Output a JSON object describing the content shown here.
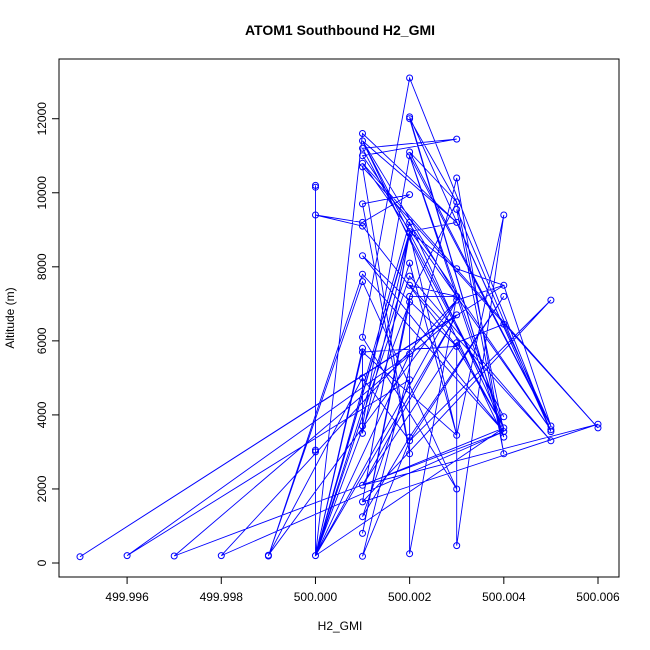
{
  "chart_data": {
    "type": "line",
    "title": "ATOM1 Southbound H2_GMI",
    "xlabel": "H2_GMI",
    "ylabel": "Altitude (m)",
    "xlim": [
      499.995,
      500.006
    ],
    "ylim": [
      0,
      13100
    ],
    "xticks": [
      "499.996",
      "499.998",
      "500.000",
      "500.002",
      "500.004",
      "500.006"
    ],
    "yticks": [
      "0",
      "2000",
      "4000",
      "6000",
      "8000",
      "10000",
      "12000"
    ],
    "grid": false,
    "series": [
      {
        "color": "#0000ff",
        "marker": "open-circle",
        "points": [
          [
            500.0,
            10200
          ],
          [
            500.0,
            10150
          ],
          [
            500.0,
            9400
          ],
          [
            500.0,
            3050
          ],
          [
            500.0,
            3000
          ],
          [
            500.0,
            200
          ],
          [
            500.001,
            11600
          ],
          [
            500.001,
            11400
          ],
          [
            500.001,
            11200
          ],
          [
            500.001,
            11000
          ],
          [
            500.001,
            10800
          ],
          [
            500.001,
            10700
          ],
          [
            500.001,
            9700
          ],
          [
            500.001,
            9200
          ],
          [
            500.001,
            9100
          ],
          [
            500.001,
            8300
          ],
          [
            500.001,
            7800
          ],
          [
            500.001,
            7600
          ],
          [
            500.001,
            6100
          ],
          [
            500.001,
            5800
          ],
          [
            500.001,
            5700
          ],
          [
            500.001,
            5000
          ],
          [
            500.001,
            3700
          ],
          [
            500.001,
            3500
          ],
          [
            500.001,
            2100
          ],
          [
            500.001,
            1650
          ],
          [
            500.001,
            1250
          ],
          [
            500.001,
            800
          ],
          [
            500.001,
            180
          ],
          [
            500.002,
            13100
          ],
          [
            500.002,
            12050
          ],
          [
            500.002,
            12000
          ],
          [
            500.002,
            11100
          ],
          [
            500.002,
            11000
          ],
          [
            500.002,
            9950
          ],
          [
            500.002,
            9200
          ],
          [
            500.002,
            8950
          ],
          [
            500.002,
            8900
          ],
          [
            500.002,
            8100
          ],
          [
            500.002,
            7750
          ],
          [
            500.002,
            7500
          ],
          [
            500.002,
            7200
          ],
          [
            500.002,
            7050
          ],
          [
            500.002,
            5650
          ],
          [
            500.002,
            4950
          ],
          [
            500.002,
            3400
          ],
          [
            500.002,
            3300
          ],
          [
            500.002,
            2950
          ],
          [
            500.002,
            250
          ],
          [
            500.003,
            11450
          ],
          [
            500.003,
            10400
          ],
          [
            500.003,
            9750
          ],
          [
            500.003,
            9550
          ],
          [
            500.003,
            9200
          ],
          [
            500.003,
            7950
          ],
          [
            500.003,
            7200
          ],
          [
            500.003,
            7100
          ],
          [
            500.003,
            6700
          ],
          [
            500.003,
            5950
          ],
          [
            500.003,
            5850
          ],
          [
            500.003,
            3450
          ],
          [
            500.003,
            2000
          ],
          [
            500.003,
            470
          ],
          [
            500.004,
            9400
          ],
          [
            500.004,
            7500
          ],
          [
            500.004,
            7200
          ],
          [
            500.004,
            6450
          ],
          [
            500.004,
            3950
          ],
          [
            500.004,
            3650
          ],
          [
            500.004,
            3550
          ],
          [
            500.004,
            3400
          ],
          [
            500.004,
            2950
          ],
          [
            500.005,
            7100
          ],
          [
            500.005,
            3700
          ],
          [
            500.005,
            3600
          ],
          [
            500.005,
            3550
          ],
          [
            500.005,
            3300
          ],
          [
            500.006,
            3750
          ],
          [
            500.006,
            3650
          ],
          [
            499.999,
            210
          ],
          [
            499.999,
            190
          ],
          [
            499.998,
            200
          ],
          [
            499.997,
            190
          ],
          [
            499.996,
            200
          ],
          [
            499.995,
            170
          ]
        ],
        "path": [
          [
            500.0,
            10200
          ],
          [
            500.0,
            10150
          ],
          [
            500.0,
            3050
          ],
          [
            500.0,
            200
          ],
          [
            500.001,
            11600
          ],
          [
            500.003,
            9200
          ],
          [
            500.001,
            11400
          ],
          [
            500.004,
            3950
          ],
          [
            500.001,
            11200
          ],
          [
            500.003,
            11450
          ],
          [
            500.001,
            11000
          ],
          [
            500.005,
            3600
          ],
          [
            500.001,
            10800
          ],
          [
            500.006,
            3650
          ],
          [
            500.001,
            10700
          ],
          [
            500.002,
            2950
          ],
          [
            500.001,
            9700
          ],
          [
            500.002,
            9950
          ],
          [
            500.001,
            9200
          ],
          [
            500.0,
            9400
          ],
          [
            500.001,
            9100
          ],
          [
            500.003,
            5850
          ],
          [
            500.001,
            8300
          ],
          [
            500.004,
            3550
          ],
          [
            500.001,
            7800
          ],
          [
            499.999,
            190
          ],
          [
            500.001,
            7600
          ],
          [
            500.003,
            2000
          ],
          [
            500.001,
            6100
          ],
          [
            500.002,
            13100
          ],
          [
            500.005,
            3550
          ],
          [
            500.002,
            12050
          ],
          [
            500.004,
            3400
          ],
          [
            500.002,
            12000
          ],
          [
            500.003,
            9750
          ],
          [
            500.002,
            11100
          ],
          [
            500.005,
            3700
          ],
          [
            500.002,
            11000
          ],
          [
            500.004,
            3650
          ],
          [
            500.002,
            9200
          ],
          [
            500.0,
            200
          ],
          [
            500.002,
            8950
          ],
          [
            500.001,
            1650
          ],
          [
            500.002,
            8900
          ],
          [
            500.003,
            3450
          ],
          [
            500.002,
            8100
          ],
          [
            500.0,
            200
          ],
          [
            500.002,
            7750
          ],
          [
            500.005,
            3300
          ],
          [
            500.002,
            7500
          ],
          [
            500.003,
            7200
          ],
          [
            500.002,
            7200
          ],
          [
            500.001,
            800
          ],
          [
            500.002,
            7050
          ],
          [
            500.0,
            200
          ],
          [
            500.002,
            5650
          ],
          [
            499.996,
            200
          ],
          [
            500.002,
            4950
          ],
          [
            500.001,
            1250
          ],
          [
            500.002,
            3400
          ],
          [
            500.004,
            7200
          ],
          [
            500.002,
            3300
          ],
          [
            500.001,
            180
          ],
          [
            500.003,
            10400
          ],
          [
            500.004,
            2950
          ],
          [
            500.003,
            9550
          ],
          [
            500.005,
            3550
          ],
          [
            500.003,
            9200
          ],
          [
            500.002,
            8950
          ],
          [
            500.003,
            7950
          ],
          [
            500.004,
            7500
          ],
          [
            500.003,
            7100
          ],
          [
            500.0,
            200
          ],
          [
            500.003,
            6700
          ],
          [
            500.001,
            2100
          ],
          [
            500.003,
            5950
          ],
          [
            500.004,
            3650
          ],
          [
            500.003,
            5850
          ],
          [
            500.001,
            5700
          ],
          [
            500.003,
            3450
          ],
          [
            500.004,
            9400
          ],
          [
            500.003,
            470
          ],
          [
            500.003,
            5950
          ],
          [
            500.004,
            6450
          ],
          [
            500.005,
            3700
          ],
          [
            500.004,
            7500
          ],
          [
            499.995,
            170
          ],
          [
            500.003,
            6700
          ],
          [
            499.997,
            190
          ],
          [
            500.004,
            3550
          ],
          [
            499.998,
            200
          ],
          [
            500.003,
            7100
          ],
          [
            499.999,
            210
          ],
          [
            500.001,
            5000
          ],
          [
            500.002,
            3300
          ],
          [
            500.005,
            7100
          ],
          [
            500.001,
            1650
          ],
          [
            500.006,
            3750
          ],
          [
            500.001,
            2100
          ],
          [
            500.004,
            3650
          ],
          [
            500.0,
            200
          ],
          [
            500.002,
            8900
          ],
          [
            500.001,
            3500
          ],
          [
            500.001,
            5800
          ],
          [
            500.0,
            200
          ],
          [
            500.001,
            5700
          ],
          [
            500.001,
            3700
          ],
          [
            500.002,
            11000
          ],
          [
            500.004,
            3400
          ],
          [
            500.001,
            11400
          ],
          [
            500.003,
            7200
          ],
          [
            500.002,
            250
          ],
          [
            500.002,
            7200
          ],
          [
            500.003,
            9750
          ],
          [
            500.004,
            3550
          ]
        ]
      }
    ]
  }
}
